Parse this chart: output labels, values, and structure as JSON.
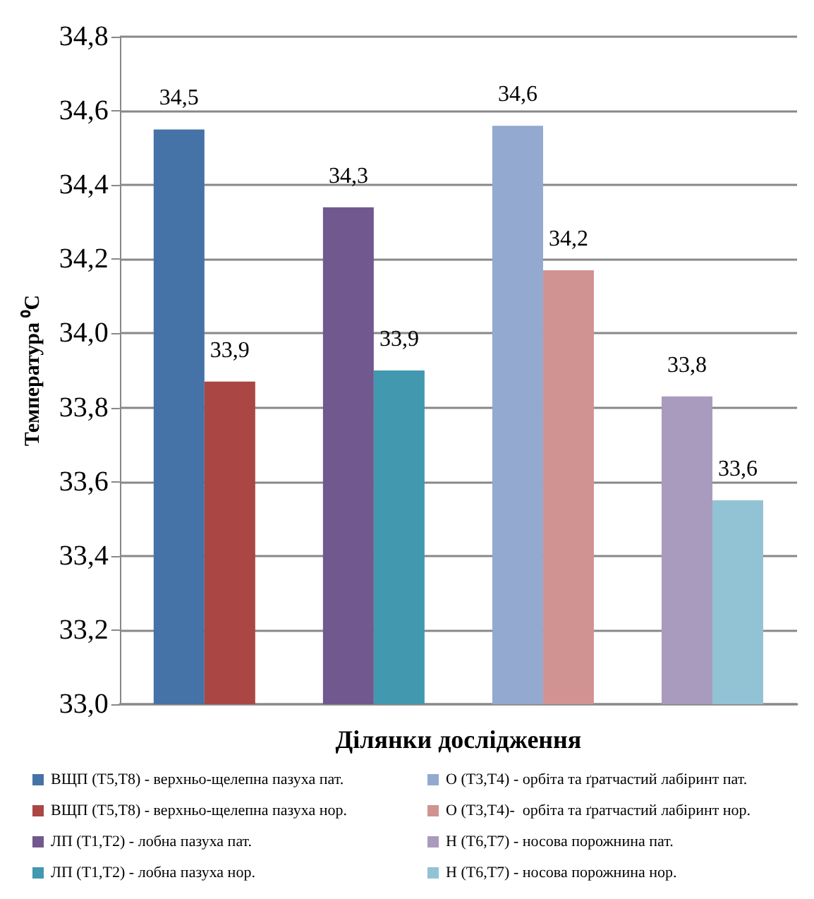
{
  "chart_data": {
    "type": "bar",
    "ylabel": "Температура ⁰C",
    "xlabel": "Ділянки дослідження",
    "categories": [
      null,
      null,
      null,
      null
    ],
    "series": [
      {
        "name": "ВЩП (Т5,Т8) - верхньо-щелепна пазуха пат.",
        "color": "#4572a7",
        "values": [
          34.55,
          null,
          null,
          null
        ],
        "value_labels": [
          "34,5",
          null,
          null,
          null
        ]
      },
      {
        "name": "ВЩП (Т5,Т8) - верхньо-щелепна пазуха нор.",
        "color": "#aa4643",
        "values": [
          33.87,
          null,
          null,
          null
        ],
        "value_labels": [
          "33,9",
          null,
          null,
          null
        ]
      },
      {
        "name": "ЛП (Т1,Т2) - лобна пазуха пат.",
        "color": "#71588f",
        "values": [
          null,
          34.34,
          null,
          null
        ],
        "value_labels": [
          null,
          "34,3",
          null,
          null
        ]
      },
      {
        "name": "ЛП (Т1,Т2) - лобна пазуха нор.",
        "color": "#4198af",
        "values": [
          null,
          33.9,
          null,
          null
        ],
        "value_labels": [
          null,
          "33,9",
          null,
          null
        ]
      },
      {
        "name": "О (Т3,Т4) - орбіта та ґратчастий лабіринт пат.",
        "color": "#93a9d0",
        "values": [
          null,
          null,
          34.56,
          null
        ],
        "value_labels": [
          null,
          null,
          "34,6",
          null
        ]
      },
      {
        "name": "О (Т3,Т4)-  орбіта та ґратчастий лабіринт нор.",
        "color": "#d09392",
        "values": [
          null,
          null,
          34.17,
          null
        ],
        "value_labels": [
          null,
          null,
          "34,2",
          null
        ]
      },
      {
        "name": "Н (Т6,Т7) - носова порожнина пат.",
        "color": "#a99bbd",
        "values": [
          null,
          null,
          null,
          33.83
        ],
        "value_labels": [
          null,
          null,
          null,
          "33,8"
        ]
      },
      {
        "name": "Н (Т6,Т7) - носова порожнина нор.",
        "color": "#92c3d4",
        "values": [
          null,
          null,
          null,
          33.55
        ],
        "value_labels": [
          null,
          null,
          null,
          "33,6"
        ]
      }
    ],
    "ylim": [
      33.0,
      34.8
    ],
    "yticks": [
      {
        "value": 33.0,
        "label": "33,0"
      },
      {
        "value": 33.2,
        "label": "33,2"
      },
      {
        "value": 33.4,
        "label": "33,4"
      },
      {
        "value": 33.6,
        "label": "33,6"
      },
      {
        "value": 33.8,
        "label": "33,8"
      },
      {
        "value": 34.0,
        "label": "34,0"
      },
      {
        "value": 34.2,
        "label": "34,2"
      },
      {
        "value": 34.4,
        "label": "34,4"
      },
      {
        "value": 34.6,
        "label": "34,6"
      },
      {
        "value": 34.8,
        "label": "34,8"
      }
    ],
    "grid": "y",
    "legend": "bottom"
  }
}
